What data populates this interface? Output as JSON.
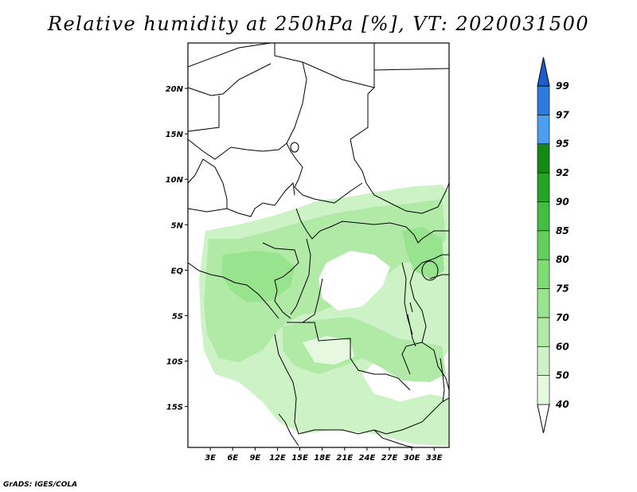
{
  "title": "Relative humidity at 250hPa [%], VT: 2020031500",
  "credit": "GrADS: IGES/COLA",
  "map": {
    "lat_range": [
      -19.5,
      25
    ],
    "lon_range": [
      0,
      35
    ],
    "lat_ticks": [
      "20N",
      "15N",
      "10N",
      "5N",
      "EQ",
      "5S",
      "10S",
      "15S"
    ],
    "lat_tick_values": [
      20,
      15,
      10,
      5,
      0,
      -5,
      -10,
      -15
    ],
    "lon_ticks": [
      "3E",
      "6E",
      "9E",
      "12E",
      "15E",
      "18E",
      "21E",
      "24E",
      "27E",
      "30E",
      "33E"
    ],
    "lon_tick_values": [
      3,
      6,
      9,
      12,
      15,
      18,
      21,
      24,
      27,
      30,
      33
    ]
  },
  "colorbar": {
    "labels": [
      "40",
      "50",
      "60",
      "70",
      "75",
      "80",
      "85",
      "90",
      "92",
      "95",
      "97",
      "99"
    ],
    "colors": [
      "#ffffff",
      "#e6f9e0",
      "#cdf2c6",
      "#b0eaa6",
      "#98e38d",
      "#80dc74",
      "#62d05a",
      "#42bf42",
      "#23a626",
      "#128a16",
      "#4a9ff0",
      "#2a7ae0",
      "#1a5fcc"
    ]
  }
}
